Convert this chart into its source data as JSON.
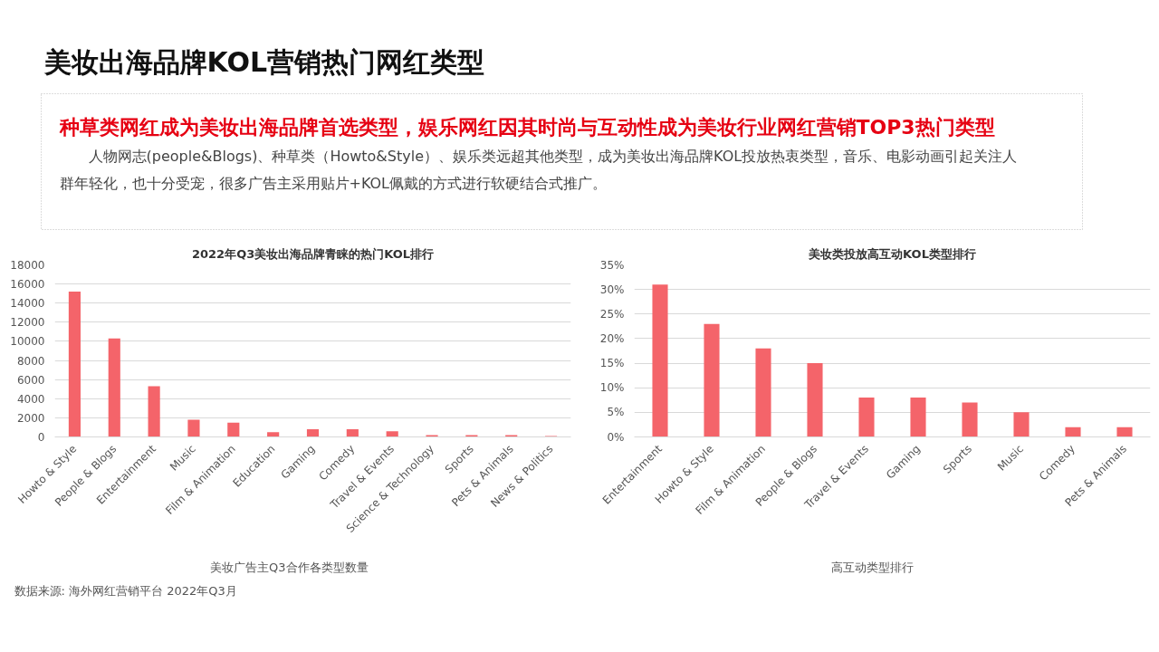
{
  "chart_data": [
    {
      "type": "other",
      "title": "美妆出海品牌KOL营销热门网红类型",
      "subtitle": "种草类网红成为美妆出海品牌首选类型，娱乐网红因其时尚与互动性成为美妆行业网红营销TOP3热门类型",
      "annotations": [
        "人物网志(people&Blogs)、种草类（Howto&Style）、娱乐类远超其他类型，成为美妆出海品牌KOL投放热衷类型，音乐、电影动画引起关注人群年轻化，也十分受宠，很多广告主采用贴片+KOL佩戴的方式进行软硬结合式推广。"
      ]
    },
    {
      "type": "bar",
      "title": "2022年Q3美妆出海品牌青睐的热门KOL排行",
      "categories": [
        "Howto & Style",
        "People & Blogs",
        "Entertainment",
        "Music",
        "Film & Animation",
        "Education",
        "Gaming",
        "Comedy",
        "Travel & Events",
        "Science & Technology",
        "Sports",
        "Pets & Animals",
        "News & Politics"
      ],
      "series": [
        {
          "name": "美妆广告主Q3合作各类型数量",
          "color": "#f4646a",
          "values": [
            15200,
            10300,
            5300,
            1800,
            1500,
            500,
            800,
            800,
            600,
            200,
            200,
            200,
            100
          ]
        }
      ],
      "ylim": [
        0,
        18000
      ],
      "yticks": [
        0,
        2000,
        4000,
        6000,
        8000,
        10000,
        12000,
        14000,
        16000,
        18000
      ],
      "grid": "y",
      "legend": "bottom",
      "annotations": [
        "数据来源: 海外网红营销平台 2022年Q3月"
      ]
    },
    {
      "type": "bar",
      "title": "美妆类投放高互动KOL类型排行",
      "categories": [
        "Entertainment",
        "Howto & Style",
        "Film & Animation",
        "People & Blogs",
        "Travel & Events",
        "Gaming",
        "Sports",
        "Music",
        "Comedy",
        "Pets & Animals"
      ],
      "series": [
        {
          "name": "高互动类型排行",
          "color": "#f4646a",
          "values": [
            31,
            23,
            18,
            15,
            8,
            8,
            7,
            5,
            2,
            2
          ]
        }
      ],
      "ylim": [
        0,
        35
      ],
      "yticks": [
        {
          "value": 0,
          "label": "0%"
        },
        {
          "value": 5,
          "label": "5%"
        },
        {
          "value": 10,
          "label": "10%"
        },
        {
          "value": 15,
          "label": "15%"
        },
        {
          "value": 20,
          "label": "20%"
        },
        {
          "value": 25,
          "label": "25%"
        },
        {
          "value": 30,
          "label": "30%"
        },
        {
          "value": 35,
          "label": "35%"
        }
      ],
      "grid": "y",
      "legend": "bottom"
    }
  ]
}
